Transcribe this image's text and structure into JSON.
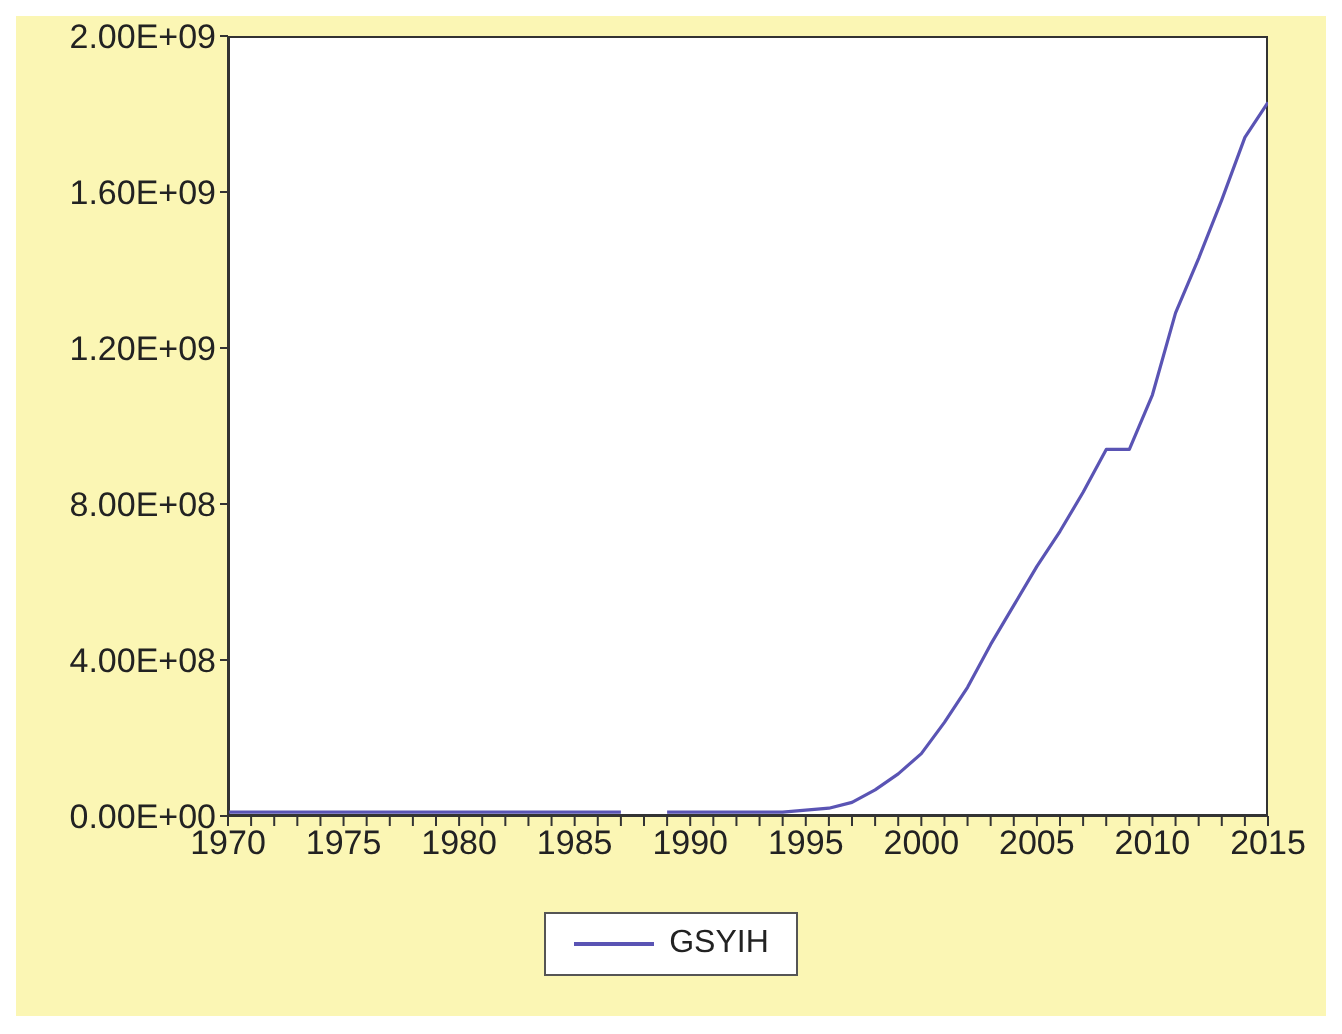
{
  "chart_data": {
    "type": "line",
    "x": [
      1970,
      1971,
      1972,
      1973,
      1974,
      1975,
      1976,
      1977,
      1978,
      1979,
      1980,
      1981,
      1982,
      1983,
      1984,
      1985,
      1986,
      1987,
      1988,
      1989,
      1990,
      1991,
      1992,
      1993,
      1994,
      1995,
      1996,
      1997,
      1998,
      1999,
      2000,
      2001,
      2002,
      2003,
      2004,
      2005,
      2006,
      2007,
      2008,
      2009,
      2010,
      2011,
      2012,
      2013,
      2014,
      2015
    ],
    "series": [
      {
        "name": "GSYIH",
        "color": "#5a54b4",
        "values": [
          10000000,
          10000000,
          10000000,
          10000000,
          10000000,
          10000000,
          10000000,
          10000000,
          10000000,
          10000000,
          10000000,
          10000000,
          10000000,
          10000000,
          10000000,
          10000000,
          10000000,
          10000000,
          null,
          10000000,
          10000000,
          10000000,
          10000000,
          10000000,
          10000000,
          15000000,
          20000000,
          35000000,
          67000000,
          108000000,
          160000000,
          240000000,
          330000000,
          440000000,
          540000000,
          640000000,
          730000000,
          830000000,
          940000000,
          940000000,
          1080000000,
          1290000000,
          1430000000,
          1580000000,
          1740000000,
          1830000000
        ]
      }
    ],
    "xlim": [
      1970,
      2015
    ],
    "xticks": [
      1970,
      {
        "value": 1971,
        "label": null
      },
      {
        "value": 1972,
        "label": null
      },
      {
        "value": 1973,
        "label": null
      },
      {
        "value": 1974,
        "label": null
      },
      1975,
      {
        "value": 1976,
        "label": null
      },
      {
        "value": 1977,
        "label": null
      },
      {
        "value": 1978,
        "label": null
      },
      {
        "value": 1979,
        "label": null
      },
      1980,
      {
        "value": 1981,
        "label": null
      },
      {
        "value": 1982,
        "label": null
      },
      {
        "value": 1983,
        "label": null
      },
      {
        "value": 1984,
        "label": null
      },
      1985,
      {
        "value": 1986,
        "label": null
      },
      {
        "value": 1987,
        "label": null
      },
      {
        "value": 1988,
        "label": null
      },
      {
        "value": 1989,
        "label": null
      },
      1990,
      {
        "value": 1991,
        "label": null
      },
      {
        "value": 1992,
        "label": null
      },
      {
        "value": 1993,
        "label": null
      },
      {
        "value": 1994,
        "label": null
      },
      1995,
      {
        "value": 1996,
        "label": null
      },
      {
        "value": 1997,
        "label": null
      },
      {
        "value": 1998,
        "label": null
      },
      {
        "value": 1999,
        "label": null
      },
      2000,
      {
        "value": 2001,
        "label": null
      },
      {
        "value": 2002,
        "label": null
      },
      {
        "value": 2003,
        "label": null
      },
      {
        "value": 2004,
        "label": null
      },
      2005,
      {
        "value": 2006,
        "label": null
      },
      {
        "value": 2007,
        "label": null
      },
      {
        "value": 2008,
        "label": null
      },
      {
        "value": 2009,
        "label": null
      },
      2010,
      {
        "value": 2011,
        "label": null
      },
      {
        "value": 2012,
        "label": null
      },
      {
        "value": 2013,
        "label": null
      },
      {
        "value": 2014,
        "label": null
      },
      2015
    ],
    "ylim": [
      0,
      2000000000
    ],
    "yticks": [
      {
        "value": 0,
        "label": "0.00E+00"
      },
      {
        "value": 400000000,
        "label": "4.00E+08"
      },
      {
        "value": 800000000,
        "label": "8.00E+08"
      },
      {
        "value": 1200000000,
        "label": "1.20E+09"
      },
      {
        "value": 1600000000,
        "label": "1.60E+09"
      },
      {
        "value": 2000000000,
        "label": "2.00E+09"
      }
    ],
    "grid": false,
    "legend": "bottom",
    "marker": "none",
    "line_style": "solid"
  }
}
